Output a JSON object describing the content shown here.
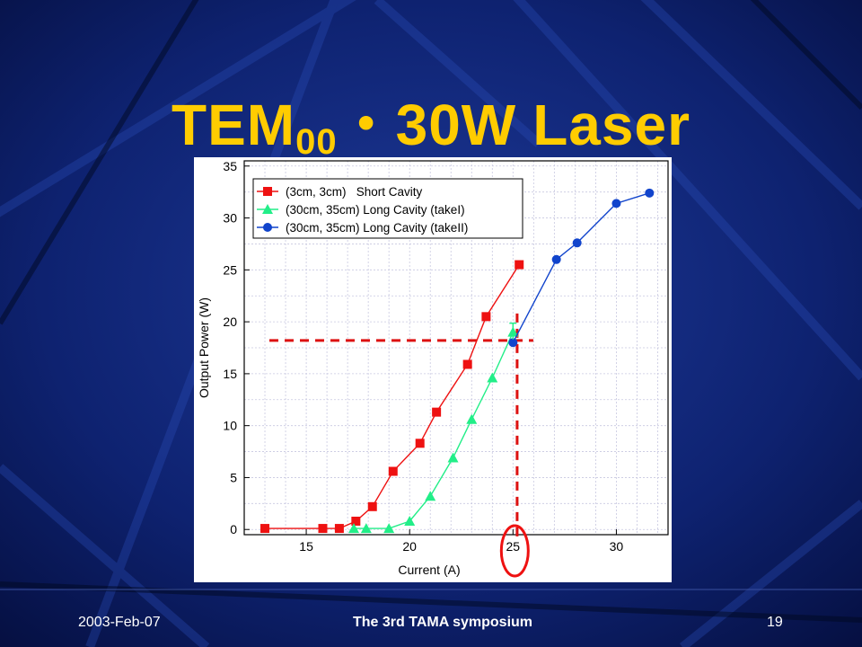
{
  "slide": {
    "title_main": "TEM",
    "title_sub": "00",
    "title_dot": "・",
    "title_power": "30W",
    "title_word": "Laser"
  },
  "footer": {
    "date": "2003-Feb-07",
    "event": "The 3rd TAMA symposium",
    "page": "19"
  },
  "colors": {
    "background": "#0a1a5c",
    "title": "#ffcc00",
    "series_short": "#ee1111",
    "series_long1": "#22ee88",
    "series_long2": "#1144cc",
    "marker_line": "#dd1111"
  },
  "chart_data": {
    "type": "line",
    "xlabel": "Current (A)",
    "ylabel": "Output Power (W)",
    "xlim": [
      12,
      32.5
    ],
    "ylim": [
      -0.5,
      35.5
    ],
    "xticks": [
      15,
      20,
      25,
      30
    ],
    "yticks": [
      0,
      5,
      10,
      15,
      20,
      25,
      30,
      35
    ],
    "grid": true,
    "legend_position": "top-left",
    "series": [
      {
        "name": "(3cm, 3cm)   Short Cavity",
        "marker": "square",
        "color": "#ee1111",
        "x": [
          13,
          15.8,
          16.6,
          17.4,
          18.2,
          19.2,
          20.5,
          21.3,
          22.8,
          23.7,
          25.3
        ],
        "y": [
          0.1,
          0.1,
          0.1,
          0.8,
          2.2,
          5.6,
          8.3,
          11.3,
          15.9,
          20.5,
          25.5
        ]
      },
      {
        "name": "(30cm, 35cm) Long Cavity (takeI)",
        "marker": "triangle",
        "color": "#22ee88",
        "x": [
          17.3,
          17.9,
          19.0,
          20.0,
          21.0,
          22.1,
          23.0,
          24.0,
          25.0
        ],
        "y": [
          0.1,
          0.1,
          0.1,
          0.8,
          3.2,
          6.9,
          10.6,
          14.6,
          19.0
        ]
      },
      {
        "name": "(30cm, 35cm) Long Cavity (takeII)",
        "marker": "circle",
        "color": "#1144cc",
        "x": [
          25.0,
          27.1,
          28.1,
          30.0,
          31.6
        ],
        "y": [
          18.0,
          26.0,
          27.6,
          31.4,
          32.4
        ]
      }
    ],
    "annotations": {
      "reference_y": 18.2,
      "reference_x": 25.2,
      "circled_tick": 25
    }
  }
}
